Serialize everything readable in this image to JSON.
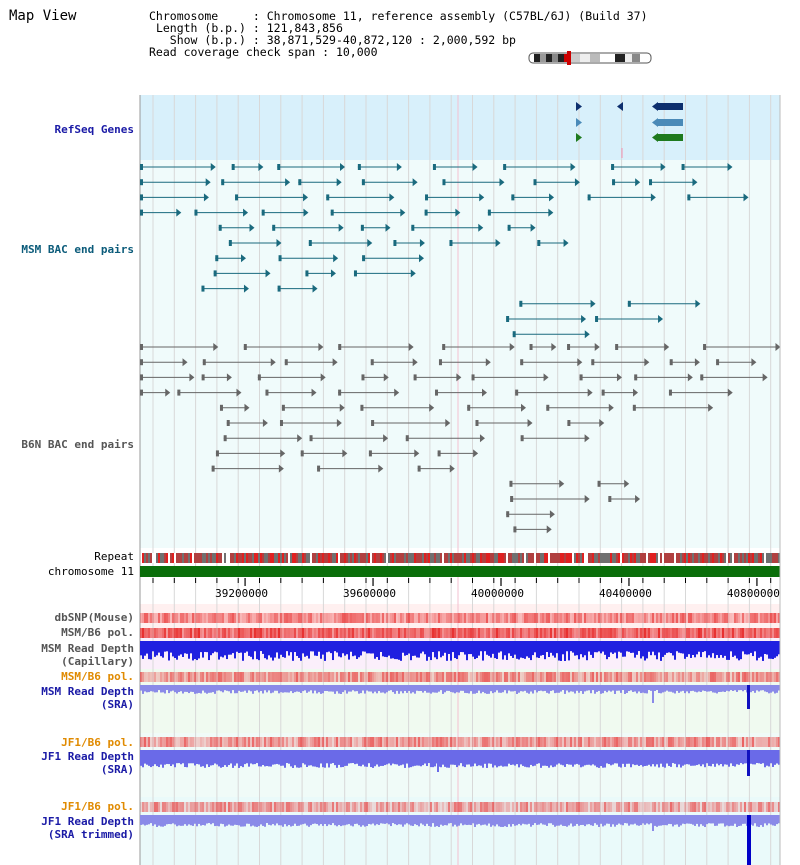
{
  "title": "Map View",
  "info": {
    "chromosome_label": "Chromosome",
    "chromosome_value": "Chromosome 11, reference assembly (C57BL/6J) (Build 37)",
    "length_label": "Length (b.p.)",
    "length_value": "121,843,856",
    "show_label": "Show (b.p.)",
    "show_value": "38,871,529-40,872,120 : 2,000,592 bp",
    "coverage_label": "Read coverage check span",
    "coverage_value": "10,000"
  },
  "tracks": {
    "refseq": "RefSeq Genes",
    "msm_bac": "MSM BAC end pairs",
    "b6n_bac": "B6N BAC end pairs",
    "repeat": "Repeat",
    "chromosome": "chromosome 11",
    "dbsnp": "dbSNP(Mouse)",
    "msm_b6_pol": "MSM/B6 pol.",
    "msm_read_depth_cap_1": "MSM Read Depth",
    "msm_read_depth_cap_2": "(Capillary)",
    "msm_b6_pol_2": "MSM/B6 pol.",
    "msm_read_depth_sra_1": "MSM Read Depth",
    "msm_read_depth_sra_2": "(SRA)",
    "jf1_b6_pol": "JF1/B6 pol.",
    "jf1_read_depth_sra_1": "JF1 Read Depth",
    "jf1_read_depth_sra_2": "(SRA)",
    "jf1_b6_pol_2": "JF1/B6 pol.",
    "jf1_read_depth_trim_1": "JF1 Read Depth",
    "jf1_read_depth_trim_2": "(SRA trimmed)"
  },
  "axis": {
    "start": 38871529,
    "end": 40872120,
    "ticks": [
      "39200000",
      "39600000",
      "40000000",
      "40400000",
      "40800000"
    ],
    "tick_values": [
      39200000,
      39600000,
      40000000,
      40400000,
      40800000
    ]
  },
  "colors": {
    "refseq_bg": "#d8f0fb",
    "panel_bg": "#f0fbfb",
    "chromosome_bar": "#0a6e0a",
    "msm_feature": "#1a6a7e",
    "b6n_feature": "#666666",
    "gene_navy": "#0d2f6e",
    "gene_steel": "#4a8ab8",
    "gene_green": "#1e7a1e",
    "depth_blue": "#2020e0",
    "depth_lightblue": "#8a8ae8",
    "pol_red": "#e83030"
  }
}
